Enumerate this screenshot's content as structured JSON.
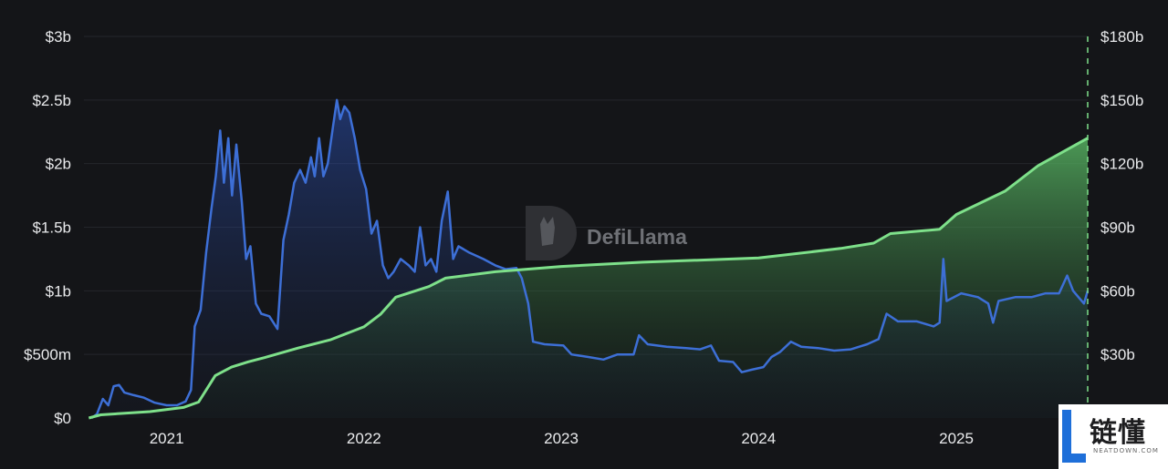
{
  "chart_data": {
    "type": "line",
    "title": "",
    "xlabel": "",
    "x_ticks": [
      "2021",
      "2022",
      "2023",
      "2024",
      "2025"
    ],
    "x_range": [
      "2020-08-01",
      "2025-09-01"
    ],
    "grid": true,
    "legend": "none",
    "y_left": {
      "ticks": [
        "$0",
        "$500m",
        "$1b",
        "$1.5b",
        "$2b",
        "$2.5b",
        "$3b"
      ],
      "range": [
        0,
        3.0
      ],
      "unit": "billion USD"
    },
    "y_right": {
      "ticks": [
        "$30b",
        "$60b",
        "$90b",
        "$120b",
        "$150b",
        "$180b"
      ],
      "range": [
        0,
        180
      ],
      "unit": "billion USD"
    },
    "series": [
      {
        "axis": "left",
        "style": "line-with-area",
        "color": "#3d6fd6",
        "points": [
          [
            "2020-08-15",
            0.0
          ],
          [
            "2020-08-25",
            0.03
          ],
          [
            "2020-09-05",
            0.15
          ],
          [
            "2020-09-15",
            0.1
          ],
          [
            "2020-09-25",
            0.25
          ],
          [
            "2020-10-05",
            0.26
          ],
          [
            "2020-10-15",
            0.2
          ],
          [
            "2020-11-01",
            0.18
          ],
          [
            "2020-11-20",
            0.16
          ],
          [
            "2020-12-10",
            0.12
          ],
          [
            "2021-01-01",
            0.1
          ],
          [
            "2021-01-20",
            0.1
          ],
          [
            "2021-02-05",
            0.13
          ],
          [
            "2021-02-15",
            0.22
          ],
          [
            "2021-02-22",
            0.72
          ],
          [
            "2021-03-05",
            0.85
          ],
          [
            "2021-03-15",
            1.3
          ],
          [
            "2021-03-25",
            1.65
          ],
          [
            "2021-04-02",
            1.9
          ],
          [
            "2021-04-10",
            2.26
          ],
          [
            "2021-04-17",
            1.85
          ],
          [
            "2021-04-25",
            2.2
          ],
          [
            "2021-05-02",
            1.75
          ],
          [
            "2021-05-10",
            2.15
          ],
          [
            "2021-05-20",
            1.7
          ],
          [
            "2021-05-28",
            1.25
          ],
          [
            "2021-06-05",
            1.35
          ],
          [
            "2021-06-15",
            0.9
          ],
          [
            "2021-06-25",
            0.82
          ],
          [
            "2021-07-10",
            0.8
          ],
          [
            "2021-07-25",
            0.7
          ],
          [
            "2021-08-05",
            1.4
          ],
          [
            "2021-08-15",
            1.6
          ],
          [
            "2021-08-25",
            1.85
          ],
          [
            "2021-09-05",
            1.95
          ],
          [
            "2021-09-15",
            1.85
          ],
          [
            "2021-09-25",
            2.05
          ],
          [
            "2021-10-02",
            1.9
          ],
          [
            "2021-10-10",
            2.2
          ],
          [
            "2021-10-18",
            1.9
          ],
          [
            "2021-10-26",
            2.0
          ],
          [
            "2021-11-05",
            2.3
          ],
          [
            "2021-11-12",
            2.5
          ],
          [
            "2021-11-18",
            2.35
          ],
          [
            "2021-11-26",
            2.45
          ],
          [
            "2021-12-05",
            2.4
          ],
          [
            "2021-12-15",
            2.2
          ],
          [
            "2021-12-25",
            1.95
          ],
          [
            "2022-01-05",
            1.8
          ],
          [
            "2022-01-15",
            1.45
          ],
          [
            "2022-01-25",
            1.55
          ],
          [
            "2022-02-05",
            1.2
          ],
          [
            "2022-02-15",
            1.1
          ],
          [
            "2022-02-25",
            1.15
          ],
          [
            "2022-03-10",
            1.25
          ],
          [
            "2022-03-25",
            1.2
          ],
          [
            "2022-04-05",
            1.15
          ],
          [
            "2022-04-15",
            1.5
          ],
          [
            "2022-04-25",
            1.2
          ],
          [
            "2022-05-05",
            1.25
          ],
          [
            "2022-05-15",
            1.15
          ],
          [
            "2022-05-25",
            1.55
          ],
          [
            "2022-06-05",
            1.78
          ],
          [
            "2022-06-15",
            1.25
          ],
          [
            "2022-06-25",
            1.35
          ],
          [
            "2022-07-15",
            1.3
          ],
          [
            "2022-08-10",
            1.25
          ],
          [
            "2022-09-01",
            1.2
          ],
          [
            "2022-09-20",
            1.17
          ],
          [
            "2022-10-10",
            1.18
          ],
          [
            "2022-10-20",
            1.1
          ],
          [
            "2022-11-01",
            0.9
          ],
          [
            "2022-11-10",
            0.6
          ],
          [
            "2022-12-01",
            0.58
          ],
          [
            "2023-01-05",
            0.57
          ],
          [
            "2023-01-20",
            0.5
          ],
          [
            "2023-02-20",
            0.48
          ],
          [
            "2023-03-20",
            0.46
          ],
          [
            "2023-04-15",
            0.5
          ],
          [
            "2023-05-15",
            0.5
          ],
          [
            "2023-05-25",
            0.65
          ],
          [
            "2023-06-10",
            0.58
          ],
          [
            "2023-07-15",
            0.56
          ],
          [
            "2023-08-20",
            0.55
          ],
          [
            "2023-09-15",
            0.54
          ],
          [
            "2023-10-05",
            0.57
          ],
          [
            "2023-10-20",
            0.45
          ],
          [
            "2023-11-15",
            0.44
          ],
          [
            "2023-12-01",
            0.36
          ],
          [
            "2023-12-20",
            0.38
          ],
          [
            "2024-01-10",
            0.4
          ],
          [
            "2024-01-25",
            0.48
          ],
          [
            "2024-02-10",
            0.52
          ],
          [
            "2024-03-01",
            0.6
          ],
          [
            "2024-03-20",
            0.56
          ],
          [
            "2024-04-20",
            0.55
          ],
          [
            "2024-05-20",
            0.53
          ],
          [
            "2024-06-20",
            0.54
          ],
          [
            "2024-07-20",
            0.58
          ],
          [
            "2024-08-10",
            0.62
          ],
          [
            "2024-08-25",
            0.82
          ],
          [
            "2024-09-15",
            0.76
          ],
          [
            "2024-10-20",
            0.76
          ],
          [
            "2024-11-20",
            0.72
          ],
          [
            "2024-12-01",
            0.75
          ],
          [
            "2024-12-08",
            1.25
          ],
          [
            "2024-12-14",
            0.92
          ],
          [
            "2025-01-10",
            0.98
          ],
          [
            "2025-02-10",
            0.95
          ],
          [
            "2025-03-01",
            0.9
          ],
          [
            "2025-03-10",
            0.75
          ],
          [
            "2025-03-20",
            0.92
          ],
          [
            "2025-04-20",
            0.95
          ],
          [
            "2025-05-20",
            0.95
          ],
          [
            "2025-06-15",
            0.98
          ],
          [
            "2025-07-10",
            0.98
          ],
          [
            "2025-07-25",
            1.12
          ],
          [
            "2025-08-05",
            1.0
          ],
          [
            "2025-08-15",
            0.95
          ],
          [
            "2025-08-25",
            0.9
          ],
          [
            "2025-09-01",
            1.0
          ]
        ]
      },
      {
        "axis": "right",
        "style": "line-with-area",
        "color": "#7ee08a",
        "points": [
          [
            "2020-08-10",
            0.0
          ],
          [
            "2020-09-01",
            1.5
          ],
          [
            "2020-12-01",
            3.0
          ],
          [
            "2021-02-01",
            5.0
          ],
          [
            "2021-03-01",
            7.5
          ],
          [
            "2021-04-01",
            20.0
          ],
          [
            "2021-05-01",
            24.0
          ],
          [
            "2021-06-01",
            26.5
          ],
          [
            "2021-07-01",
            28.5
          ],
          [
            "2021-09-01",
            33.0
          ],
          [
            "2021-11-01",
            37.0
          ],
          [
            "2022-01-01",
            43.0
          ],
          [
            "2022-02-01",
            49.0
          ],
          [
            "2022-03-01",
            57.0
          ],
          [
            "2022-05-01",
            62.0
          ],
          [
            "2022-06-01",
            66.0
          ],
          [
            "2022-09-01",
            69.0
          ],
          [
            "2023-01-01",
            71.5
          ],
          [
            "2023-06-01",
            73.5
          ],
          [
            "2024-01-01",
            75.5
          ],
          [
            "2024-06-01",
            80.0
          ],
          [
            "2024-08-01",
            82.5
          ],
          [
            "2024-09-01",
            87.0
          ],
          [
            "2024-12-01",
            89.0
          ],
          [
            "2025-01-01",
            96.0
          ],
          [
            "2025-04-01",
            107.0
          ],
          [
            "2025-06-01",
            119.0
          ],
          [
            "2025-09-01",
            132.0
          ]
        ]
      }
    ],
    "watermark": "DefiLlama"
  },
  "corner_logo": {
    "text": "链懂",
    "subtext": "NEATDOWN.COM"
  }
}
